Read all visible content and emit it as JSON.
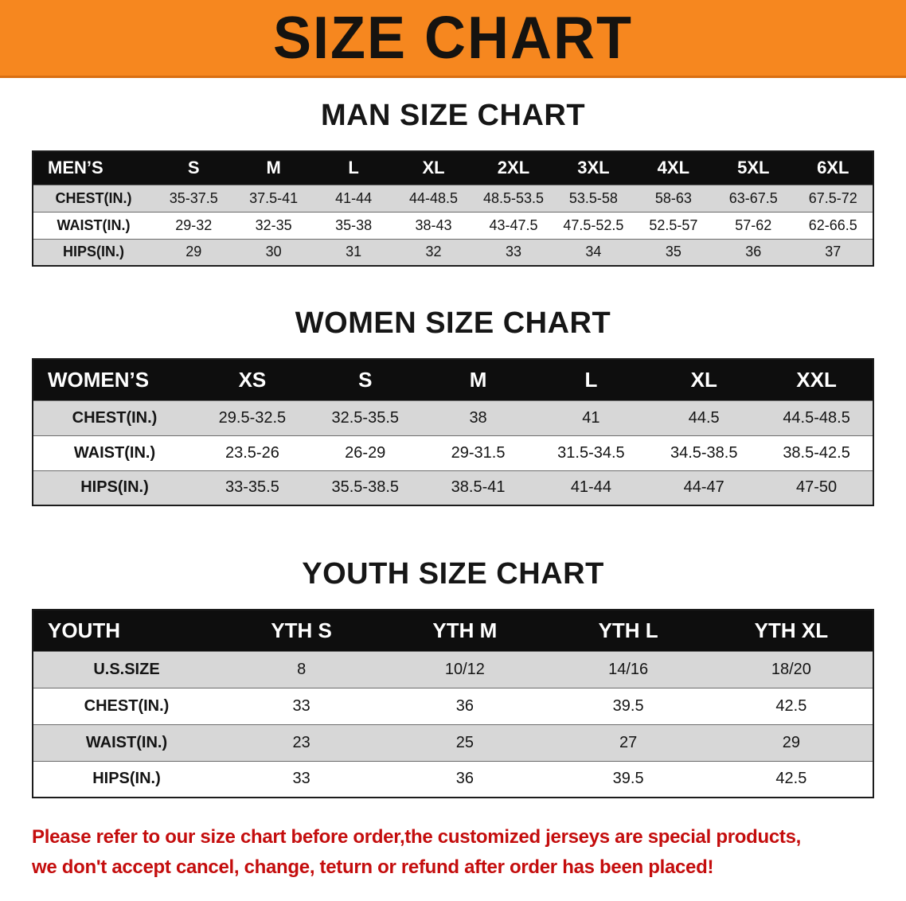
{
  "banner": {
    "title": "SIZE CHART"
  },
  "colors": {
    "banner_bg": "#F6871F",
    "header_bg": "#0E0E0E",
    "row_gray": "#D7D7D7",
    "disclaimer_red": "#C40D0D"
  },
  "sections": [
    {
      "id": "men",
      "heading": "MAN SIZE CHART",
      "table": {
        "header": [
          "MEN’S",
          "S",
          "M",
          "L",
          "XL",
          "2XL",
          "3XL",
          "4XL",
          "5XL",
          "6XL"
        ],
        "rows": [
          {
            "label": "CHEST(IN.)",
            "values": [
              "35-37.5",
              "37.5-41",
              "41-44",
              "44-48.5",
              "48.5-53.5",
              "53.5-58",
              "58-63",
              "63-67.5",
              "67.5-72"
            ]
          },
          {
            "label": "WAIST(IN.)",
            "values": [
              "29-32",
              "32-35",
              "35-38",
              "38-43",
              "43-47.5",
              "47.5-52.5",
              "52.5-57",
              "57-62",
              "62-66.5"
            ]
          },
          {
            "label": "HIPS(IN.)",
            "values": [
              "29",
              "30",
              "31",
              "32",
              "33",
              "34",
              "35",
              "36",
              "37"
            ]
          }
        ]
      }
    },
    {
      "id": "women",
      "heading": "WOMEN SIZE CHART",
      "table": {
        "header": [
          "WOMEN’S",
          "XS",
          "S",
          "M",
          "L",
          "XL",
          "XXL"
        ],
        "rows": [
          {
            "label": "CHEST(IN.)",
            "values": [
              "29.5-32.5",
              "32.5-35.5",
              "38",
              "41",
              "44.5",
              "44.5-48.5"
            ]
          },
          {
            "label": "WAIST(IN.)",
            "values": [
              "23.5-26",
              "26-29",
              "29-31.5",
              "31.5-34.5",
              "34.5-38.5",
              "38.5-42.5"
            ]
          },
          {
            "label": "HIPS(IN.)",
            "values": [
              "33-35.5",
              "35.5-38.5",
              "38.5-41",
              "41-44",
              "44-47",
              "47-50"
            ]
          }
        ]
      }
    },
    {
      "id": "youth",
      "heading": "YOUTH SIZE CHART",
      "table": {
        "header": [
          "YOUTH",
          "YTH S",
          "YTH M",
          "YTH L",
          "YTH XL"
        ],
        "rows": [
          {
            "label": "U.S.SIZE",
            "values": [
              "8",
              "10/12",
              "14/16",
              "18/20"
            ]
          },
          {
            "label": "CHEST(IN.)",
            "values": [
              "33",
              "36",
              "39.5",
              "42.5"
            ]
          },
          {
            "label": "WAIST(IN.)",
            "values": [
              "23",
              "25",
              "27",
              "29"
            ]
          },
          {
            "label": "HIPS(IN.)",
            "values": [
              "33",
              "36",
              "39.5",
              "42.5"
            ]
          }
        ]
      }
    }
  ],
  "disclaimer": {
    "line1": "Please refer to our size chart before order,the customized jerseys are special products,",
    "line2": "we don't accept cancel, change, teturn or refund after order has been placed!"
  }
}
